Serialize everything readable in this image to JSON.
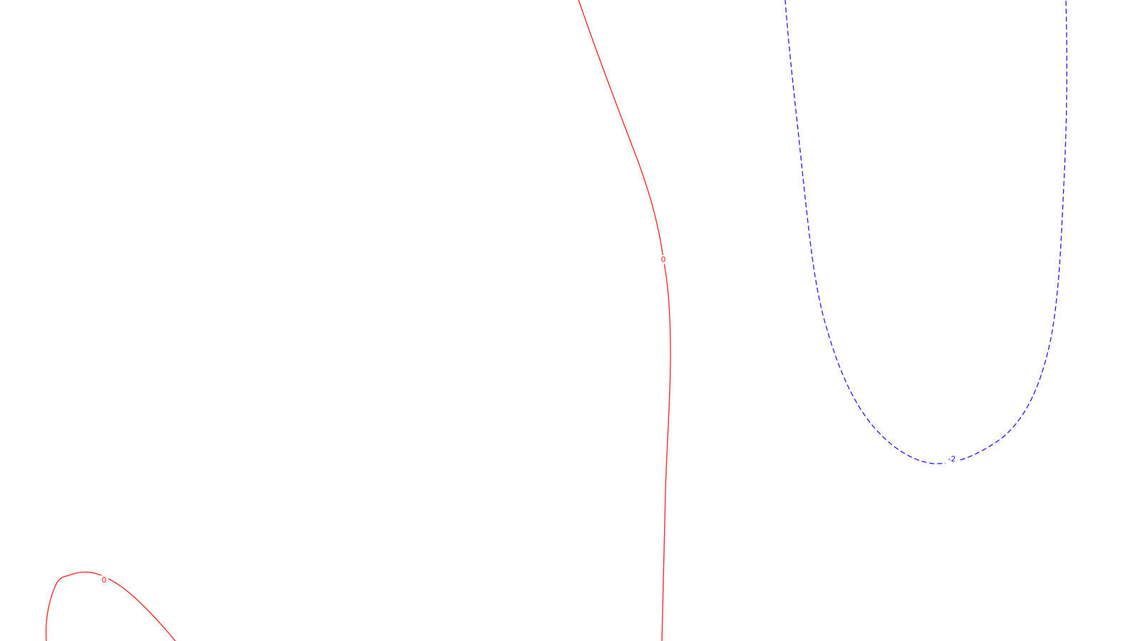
{
  "plot": {
    "background": "#ffffff"
  },
  "contours": [
    {
      "id": "contour-zero-main",
      "level_label": "0",
      "color": "#ff2020",
      "dashed": false
    },
    {
      "id": "contour-zero-small",
      "level_label": "0",
      "color": "#ff2020",
      "dashed": false
    },
    {
      "id": "contour-neg-two",
      "level_label": "-2",
      "color": "#1a1aff",
      "dashed": true
    }
  ]
}
